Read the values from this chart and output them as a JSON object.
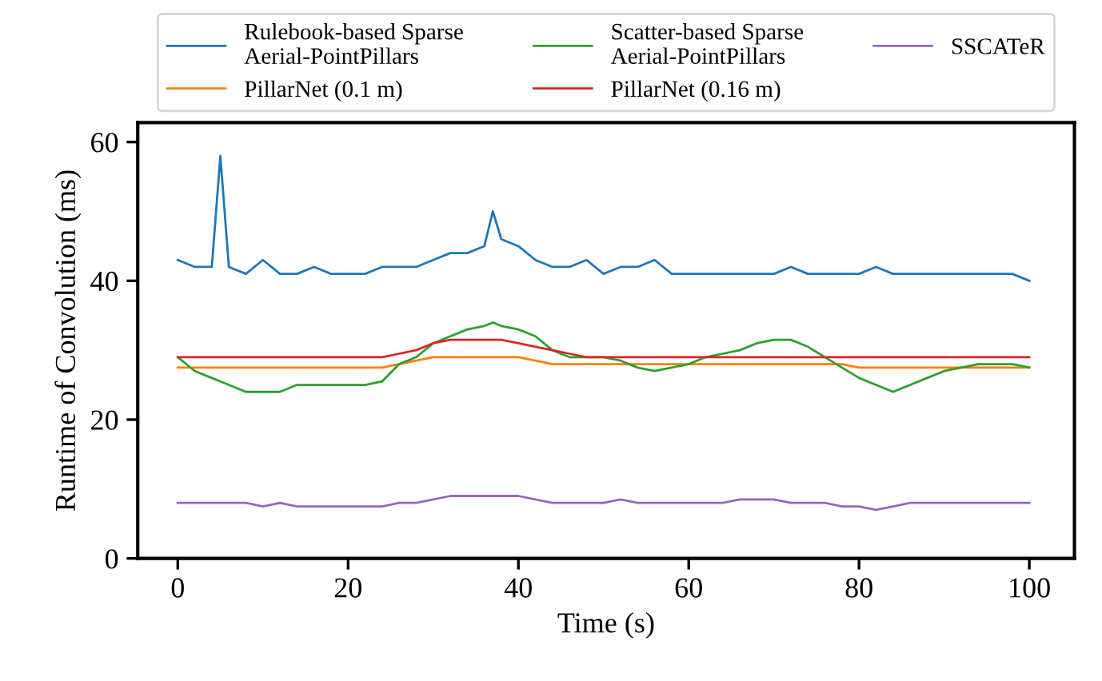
{
  "chart_data": {
    "type": "line",
    "xlabel": "Time (s)",
    "ylabel": "Runtime of Convolution (ms)",
    "xlim": [
      -4.7,
      105.3
    ],
    "ylim": [
      0,
      62.8
    ],
    "xticks": [
      0,
      20,
      40,
      60,
      80,
      100
    ],
    "yticks": [
      0,
      20,
      40,
      60
    ],
    "grid": false,
    "legend": "top",
    "marker": "none",
    "line_style": "solid",
    "x": [
      0,
      2,
      4,
      5,
      6,
      8,
      10,
      12,
      14,
      16,
      18,
      20,
      22,
      24,
      26,
      28,
      30,
      32,
      34,
      36,
      37,
      38,
      40,
      42,
      44,
      46,
      48,
      50,
      52,
      54,
      56,
      58,
      60,
      62,
      64,
      66,
      68,
      70,
      72,
      74,
      76,
      78,
      80,
      82,
      84,
      86,
      88,
      90,
      92,
      94,
      96,
      98,
      100
    ],
    "series": [
      {
        "name": "Rulebook-based Sparse\nAerial-PointPillars",
        "color": "#1f77b4",
        "values": [
          43,
          42,
          42,
          58,
          42,
          41,
          43,
          41,
          41,
          42,
          41,
          41,
          41,
          42,
          42,
          42,
          43,
          44,
          44,
          45,
          50,
          46,
          45,
          43,
          42,
          42,
          43,
          41,
          42,
          42,
          43,
          41,
          41,
          41,
          41,
          41,
          41,
          41,
          42,
          41,
          41,
          41,
          41,
          42,
          41,
          41,
          41,
          41,
          41,
          41,
          41,
          41,
          40
        ]
      },
      {
        "name": "PillarNet (0.1 m)",
        "color": "#ff7f0e",
        "values": [
          27.5,
          27.5,
          27.5,
          27.5,
          27.5,
          27.5,
          27.5,
          27.5,
          27.5,
          27.5,
          27.5,
          27.5,
          27.5,
          27.5,
          28,
          28.5,
          29,
          29,
          29,
          29,
          29,
          29,
          29,
          28.5,
          28,
          28,
          28,
          28,
          28,
          28,
          28,
          28,
          28,
          28,
          28,
          28,
          28,
          28,
          28,
          28,
          28,
          28,
          27.5,
          27.5,
          27.5,
          27.5,
          27.5,
          27.5,
          27.5,
          27.5,
          27.5,
          27.5,
          27.5
        ]
      },
      {
        "name": "Scatter-based Sparse\nAerial-PointPillars",
        "color": "#2ca02c",
        "values": [
          29,
          27,
          26,
          25.5,
          25,
          24,
          24,
          24,
          25,
          25,
          25,
          25,
          25,
          25.5,
          28,
          29,
          31,
          32,
          33,
          33.5,
          34,
          33.5,
          33,
          32,
          30,
          29,
          29,
          29,
          28.5,
          27.5,
          27,
          27.5,
          28,
          29,
          29.5,
          30,
          31,
          31.5,
          31.5,
          30.5,
          29,
          27.5,
          26,
          25,
          24,
          25,
          26,
          27,
          27.5,
          28,
          28,
          28,
          27.5
        ]
      },
      {
        "name": "PillarNet (0.16 m)",
        "color": "#d62728",
        "values": [
          29,
          29,
          29,
          29,
          29,
          29,
          29,
          29,
          29,
          29,
          29,
          29,
          29,
          29,
          29.5,
          30,
          31,
          31.5,
          31.5,
          31.5,
          31.5,
          31.5,
          31,
          30.5,
          30,
          29.5,
          29,
          29,
          29,
          29,
          29,
          29,
          29,
          29,
          29,
          29,
          29,
          29,
          29,
          29,
          29,
          29,
          29,
          29,
          29,
          29,
          29,
          29,
          29,
          29,
          29,
          29,
          29
        ]
      },
      {
        "name": "SSCATeR",
        "color": "#9467bd",
        "values": [
          8,
          8,
          8,
          8,
          8,
          8,
          7.5,
          8,
          7.5,
          7.5,
          7.5,
          7.5,
          7.5,
          7.5,
          8,
          8,
          8.5,
          9,
          9,
          9,
          9,
          9,
          9,
          8.5,
          8,
          8,
          8,
          8,
          8.5,
          8,
          8,
          8,
          8,
          8,
          8,
          8.5,
          8.5,
          8.5,
          8,
          8,
          8,
          7.5,
          7.5,
          7,
          7.5,
          8,
          8,
          8,
          8,
          8,
          8,
          8,
          8
        ]
      }
    ]
  }
}
